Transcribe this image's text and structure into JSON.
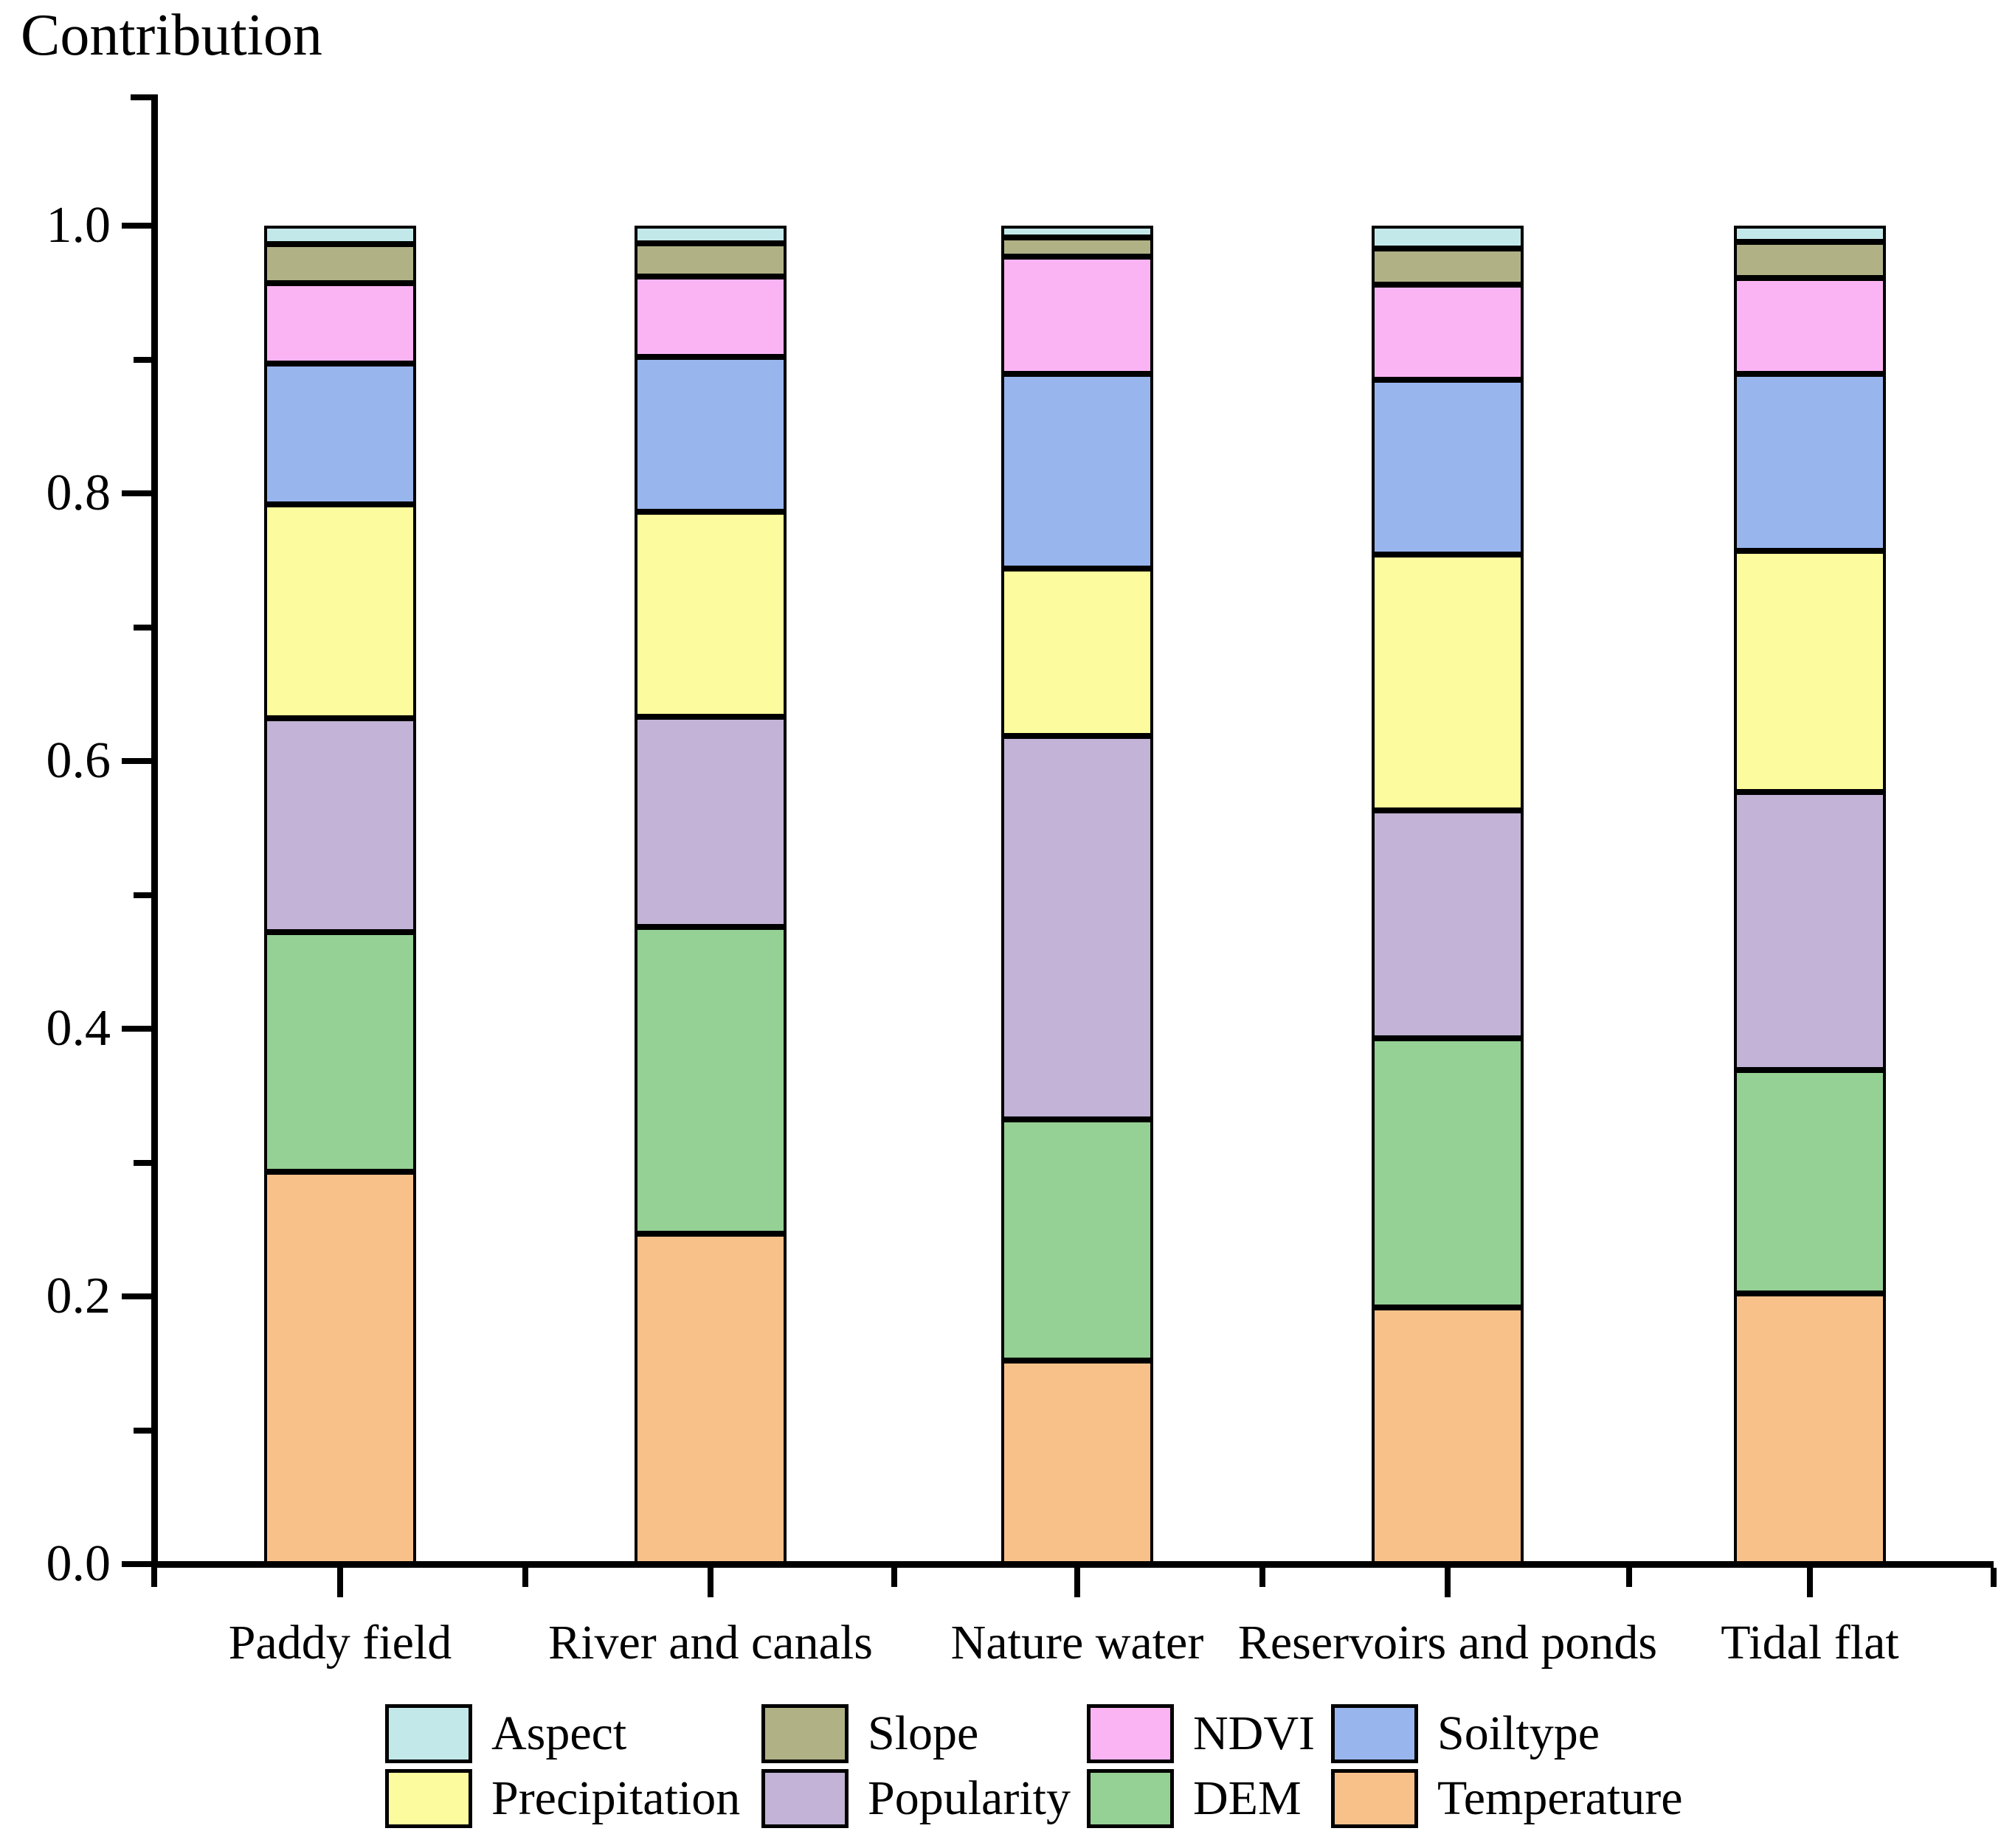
{
  "chart_data": {
    "type": "bar",
    "stacked": true,
    "title": "Contribution",
    "xlabel": "",
    "ylabel": "Contribution",
    "categories": [
      "Paddy field",
      "River and canals",
      "Nature water",
      "Reservoirs and ponds",
      "Tidal flat"
    ],
    "series": [
      {
        "name": "Temperature",
        "color": "#f9c18a",
        "values": [
          0.293,
          0.247,
          0.152,
          0.192,
          0.202
        ]
      },
      {
        "name": "DEM",
        "color": "#95d094",
        "values": [
          0.179,
          0.229,
          0.18,
          0.201,
          0.167
        ]
      },
      {
        "name": "Popularity",
        "color": "#c3b3d7",
        "values": [
          0.16,
          0.157,
          0.287,
          0.17,
          0.208
        ]
      },
      {
        "name": "Precipitation",
        "color": "#fcfb9d",
        "values": [
          0.16,
          0.153,
          0.125,
          0.191,
          0.18
        ]
      },
      {
        "name": "Soiltype",
        "color": "#98b5ee",
        "values": [
          0.105,
          0.116,
          0.145,
          0.131,
          0.132
        ]
      },
      {
        "name": "NDVI",
        "color": "#fbb4f3",
        "values": [
          0.06,
          0.06,
          0.088,
          0.071,
          0.072
        ]
      },
      {
        "name": "Slope",
        "color": "#b0b286",
        "values": [
          0.029,
          0.025,
          0.014,
          0.027,
          0.027
        ]
      },
      {
        "name": "Aspect",
        "color": "#c3e8ea",
        "values": [
          0.014,
          0.013,
          0.009,
          0.017,
          0.012
        ]
      }
    ],
    "y_axis": {
      "tick_labels": [
        "0.0",
        "0.2",
        "0.4",
        "0.6",
        "0.8",
        "1.0"
      ],
      "major_tick_values": [
        0.0,
        0.2,
        0.4,
        0.6,
        0.8,
        1.0
      ],
      "minor_tick_values": [
        0.1,
        0.3,
        0.5,
        0.7,
        0.9
      ],
      "range": [
        0.0,
        1.1
      ],
      "grid": false
    },
    "legend": {
      "position": "bottom",
      "rows": [
        [
          "Aspect",
          "Slope",
          "NDVI",
          "Soiltype"
        ],
        [
          "Precipitation",
          "Popularity",
          "DEM",
          "Temperature"
        ]
      ]
    }
  }
}
